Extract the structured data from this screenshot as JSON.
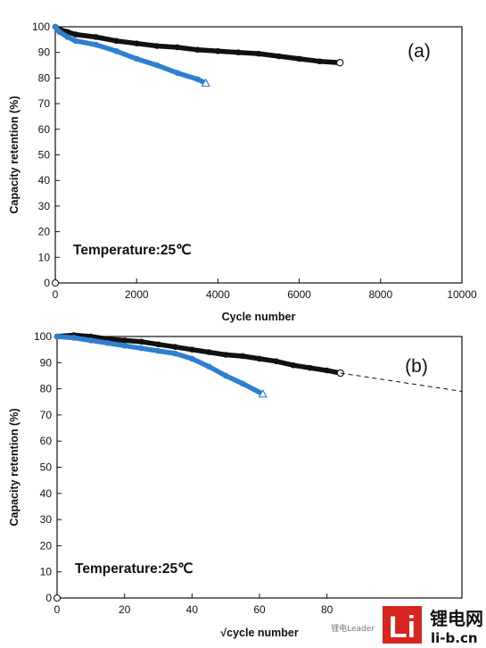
{
  "chart_data": [
    {
      "type": "scatter",
      "panel_label": "(a)",
      "annotation": "Temperature:25℃",
      "xlabel": "Cycle number",
      "ylabel": "Capacity retention (%)",
      "xlim": [
        0,
        10000
      ],
      "ylim": [
        0,
        100
      ],
      "xticks": [
        0,
        2000,
        4000,
        6000,
        8000,
        10000
      ],
      "yticks": [
        0,
        10,
        20,
        30,
        40,
        50,
        60,
        70,
        80,
        90,
        100
      ],
      "grid": false,
      "series": [
        {
          "color": "#111111",
          "end_marker": "circle",
          "x": [
            0,
            100,
            300,
            500,
            1000,
            1500,
            2000,
            2500,
            3000,
            3500,
            4000,
            4500,
            5000,
            5500,
            6000,
            6500,
            7000
          ],
          "y": [
            100,
            99,
            98,
            97,
            96,
            94.5,
            93.5,
            92.5,
            92,
            91,
            90.5,
            90,
            89.5,
            88.5,
            87.5,
            86.5,
            86
          ]
        },
        {
          "color": "#2f7fd1",
          "end_marker": "triangle",
          "x": [
            0,
            100,
            300,
            500,
            1000,
            1500,
            2000,
            2500,
            3000,
            3500,
            3700
          ],
          "y": [
            100,
            98,
            96,
            94.5,
            93,
            90.5,
            87.5,
            85,
            82,
            79.5,
            78
          ]
        }
      ]
    },
    {
      "type": "scatter",
      "panel_label": "(b)",
      "annotation": "Temperature:25℃",
      "xlabel": "√cycle number",
      "ylabel": "Capacity retention (%)",
      "xlim": [
        0,
        120
      ],
      "ylim": [
        0,
        100
      ],
      "xticks": [
        0,
        20,
        40,
        60,
        80
      ],
      "yticks": [
        0,
        10,
        20,
        30,
        40,
        50,
        60,
        70,
        80,
        90,
        100
      ],
      "grid": false,
      "series": [
        {
          "color": "#111111",
          "end_marker": "circle",
          "x": [
            0,
            5,
            10,
            15,
            20,
            25,
            30,
            35,
            40,
            45,
            50,
            55,
            60,
            65,
            70,
            75,
            80,
            84
          ],
          "y": [
            100,
            100.5,
            100,
            99,
            98.5,
            98,
            97,
            96,
            95,
            94,
            93,
            92.5,
            91.5,
            90.5,
            89,
            88,
            87,
            86
          ]
        },
        {
          "color": "#2f7fd1",
          "end_marker": "triangle",
          "x": [
            0,
            5,
            10,
            15,
            20,
            25,
            30,
            35,
            40,
            45,
            50,
            55,
            61
          ],
          "y": [
            100,
            99.5,
            98.5,
            97.5,
            96.5,
            95.5,
            94.5,
            93.5,
            91.5,
            88.5,
            85,
            82,
            78
          ]
        },
        {
          "style": "dashed",
          "color": "#111111",
          "x": [
            84,
            120
          ],
          "y": [
            86,
            79
          ]
        }
      ]
    }
  ],
  "watermark": {
    "logo_text": "Li",
    "brand_cn": "锂电网",
    "brand_url": "li-b.cn",
    "small_text": "锂电Leader"
  }
}
